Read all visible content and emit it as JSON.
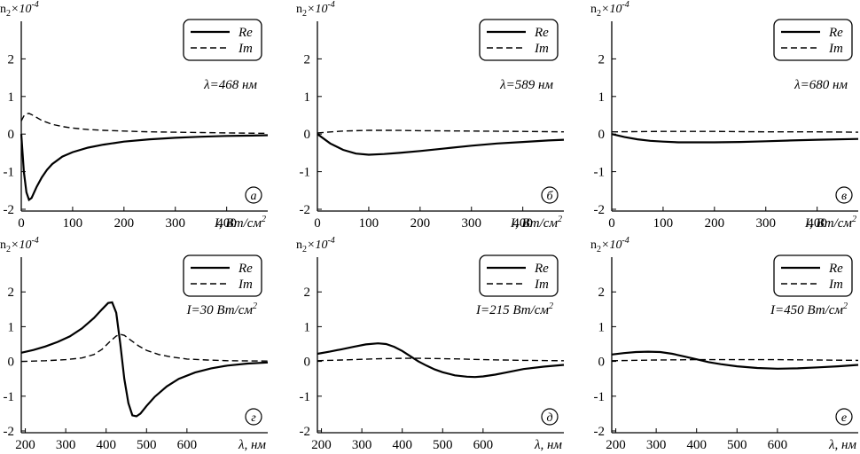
{
  "chart_data": [
    {
      "type": "line",
      "panel_label": "а",
      "annotation": "λ=468 нм",
      "ylabel_base": "n",
      "ylabel_sub": "2",
      "ylabel_mult": "×10",
      "ylabel_exp": "-4",
      "xlabel": "I, Вт/см",
      "xlabel_sup": "2",
      "xlim": [
        0,
        480
      ],
      "ylim": [
        -2,
        3
      ],
      "xticks": [
        0,
        100,
        200,
        300,
        400
      ],
      "yticks": [
        -2,
        -1,
        0,
        1,
        2
      ],
      "legend": {
        "entries": [
          "Re",
          "Im"
        ],
        "position": "top-right"
      },
      "series": [
        {
          "name": "Re",
          "style": "solid",
          "x": [
            0,
            5,
            10,
            15,
            20,
            25,
            30,
            40,
            50,
            60,
            80,
            100,
            130,
            160,
            200,
            250,
            300,
            350,
            400,
            450,
            480
          ],
          "y": [
            0,
            -1.0,
            -1.55,
            -1.75,
            -1.7,
            -1.55,
            -1.4,
            -1.15,
            -0.95,
            -0.8,
            -0.6,
            -0.48,
            -0.36,
            -0.28,
            -0.2,
            -0.14,
            -0.1,
            -0.07,
            -0.05,
            -0.04,
            -0.03
          ]
        },
        {
          "name": "Im",
          "style": "dashed",
          "x": [
            0,
            5,
            10,
            15,
            20,
            30,
            40,
            60,
            80,
            100,
            130,
            160,
            200,
            250,
            300,
            350,
            400,
            480
          ],
          "y": [
            0.35,
            0.48,
            0.54,
            0.55,
            0.52,
            0.44,
            0.36,
            0.26,
            0.2,
            0.16,
            0.12,
            0.1,
            0.08,
            0.06,
            0.05,
            0.04,
            0.03,
            0.02
          ]
        }
      ]
    },
    {
      "type": "line",
      "panel_label": "б",
      "annotation": "λ=589 нм",
      "ylabel_base": "n",
      "ylabel_sub": "2",
      "ylabel_mult": "×10",
      "ylabel_exp": "-4",
      "xlabel": "I, Вт/см",
      "xlabel_sup": "2",
      "xlim": [
        0,
        480
      ],
      "ylim": [
        -2,
        3
      ],
      "xticks": [
        0,
        100,
        200,
        300,
        400
      ],
      "yticks": [
        -2,
        -1,
        0,
        1,
        2
      ],
      "legend": {
        "entries": [
          "Re",
          "Im"
        ],
        "position": "top-right"
      },
      "series": [
        {
          "name": "Re",
          "style": "solid",
          "x": [
            0,
            25,
            50,
            75,
            100,
            130,
            160,
            200,
            250,
            300,
            350,
            400,
            450,
            480
          ],
          "y": [
            0,
            -0.25,
            -0.42,
            -0.52,
            -0.55,
            -0.53,
            -0.5,
            -0.45,
            -0.38,
            -0.31,
            -0.25,
            -0.21,
            -0.17,
            -0.15
          ]
        },
        {
          "name": "Im",
          "style": "dashed",
          "x": [
            0,
            50,
            100,
            150,
            200,
            300,
            400,
            480
          ],
          "y": [
            0.03,
            0.08,
            0.1,
            0.1,
            0.09,
            0.08,
            0.07,
            0.06
          ]
        }
      ]
    },
    {
      "type": "line",
      "panel_label": "в",
      "annotation": "λ=680 нм",
      "ylabel_base": "n",
      "ylabel_sub": "2",
      "ylabel_mult": "×10",
      "ylabel_exp": "-4",
      "xlabel": "I, Вт/см",
      "xlabel_sup": "2",
      "xlim": [
        0,
        480
      ],
      "ylim": [
        -2,
        3
      ],
      "xticks": [
        0,
        100,
        200,
        300,
        400
      ],
      "yticks": [
        -2,
        -1,
        0,
        1,
        2
      ],
      "legend": {
        "entries": [
          "Re",
          "Im"
        ],
        "position": "top-right"
      },
      "series": [
        {
          "name": "Re",
          "style": "solid",
          "x": [
            0,
            25,
            50,
            75,
            100,
            130,
            160,
            200,
            250,
            300,
            350,
            400,
            480
          ],
          "y": [
            0,
            -0.08,
            -0.14,
            -0.18,
            -0.2,
            -0.22,
            -0.22,
            -0.22,
            -0.21,
            -0.19,
            -0.17,
            -0.15,
            -0.13
          ]
        },
        {
          "name": "Im",
          "style": "dashed",
          "x": [
            0,
            100,
            200,
            300,
            400,
            480
          ],
          "y": [
            0.06,
            0.07,
            0.07,
            0.06,
            0.06,
            0.05
          ]
        }
      ]
    },
    {
      "type": "line",
      "panel_label": "г",
      "annotation": "I=30 Вт/см",
      "annotation_sup": "2",
      "ylabel_base": "n",
      "ylabel_sub": "2",
      "ylabel_mult": "×10",
      "ylabel_exp": "-4",
      "xlabel": "λ, нм",
      "xlabel_sup": "",
      "xlim": [
        190,
        800
      ],
      "ylim": [
        -2,
        3
      ],
      "xticks": [
        200,
        300,
        400,
        500,
        600
      ],
      "yticks": [
        -2,
        -1,
        0,
        1,
        2
      ],
      "legend": {
        "entries": [
          "Re",
          "Im"
        ],
        "position": "top-right"
      },
      "series": [
        {
          "name": "Re",
          "style": "solid",
          "x": [
            190,
            220,
            250,
            280,
            310,
            340,
            370,
            390,
            405,
            415,
            425,
            435,
            445,
            455,
            465,
            475,
            485,
            500,
            520,
            550,
            580,
            620,
            660,
            700,
            750,
            800
          ],
          "y": [
            0.25,
            0.33,
            0.43,
            0.56,
            0.72,
            0.95,
            1.25,
            1.5,
            1.68,
            1.7,
            1.4,
            0.5,
            -0.5,
            -1.2,
            -1.55,
            -1.58,
            -1.5,
            -1.28,
            -1.02,
            -0.72,
            -0.5,
            -0.32,
            -0.2,
            -0.12,
            -0.06,
            -0.03
          ]
        },
        {
          "name": "Im",
          "style": "dashed",
          "x": [
            190,
            250,
            300,
            340,
            370,
            390,
            410,
            425,
            435,
            445,
            460,
            480,
            500,
            530,
            560,
            600,
            650,
            700,
            800
          ],
          "y": [
            0.0,
            0.02,
            0.05,
            0.1,
            0.2,
            0.35,
            0.58,
            0.73,
            0.78,
            0.75,
            0.62,
            0.45,
            0.32,
            0.2,
            0.13,
            0.07,
            0.04,
            0.02,
            0.01
          ]
        }
      ]
    },
    {
      "type": "line",
      "panel_label": "д",
      "annotation": "I=215 Вт/см",
      "annotation_sup": "2",
      "ylabel_base": "n",
      "ylabel_sub": "2",
      "ylabel_mult": "×10",
      "ylabel_exp": "-4",
      "xlabel": "λ, нм",
      "xlabel_sup": "",
      "xlim": [
        190,
        800
      ],
      "ylim": [
        -2,
        3
      ],
      "xticks": [
        200,
        300,
        400,
        500,
        600
      ],
      "yticks": [
        -2,
        -1,
        0,
        1,
        2
      ],
      "legend": {
        "entries": [
          "Re",
          "Im"
        ],
        "position": "top-right"
      },
      "series": [
        {
          "name": "Re",
          "style": "solid",
          "x": [
            190,
            220,
            250,
            280,
            310,
            340,
            360,
            380,
            400,
            420,
            440,
            460,
            480,
            500,
            530,
            560,
            580,
            600,
            630,
            660,
            700,
            750,
            800
          ],
          "y": [
            0.22,
            0.28,
            0.35,
            0.42,
            0.49,
            0.52,
            0.5,
            0.42,
            0.3,
            0.15,
            0.0,
            -0.12,
            -0.23,
            -0.31,
            -0.4,
            -0.44,
            -0.45,
            -0.43,
            -0.38,
            -0.31,
            -0.22,
            -0.15,
            -0.1
          ]
        },
        {
          "name": "Im",
          "style": "dashed",
          "x": [
            190,
            250,
            300,
            350,
            400,
            450,
            500,
            550,
            600,
            650,
            700,
            800
          ],
          "y": [
            0.02,
            0.04,
            0.06,
            0.08,
            0.09,
            0.09,
            0.08,
            0.07,
            0.05,
            0.04,
            0.03,
            0.02
          ]
        }
      ]
    },
    {
      "type": "line",
      "panel_label": "е",
      "annotation": "I=450 Вт/см",
      "annotation_sup": "2",
      "ylabel_base": "n",
      "ylabel_sub": "2",
      "ylabel_mult": "×10",
      "ylabel_exp": "-4",
      "xlabel": "λ, нм",
      "xlabel_sup": "",
      "xlim": [
        190,
        800
      ],
      "ylim": [
        -2,
        3
      ],
      "xticks": [
        200,
        300,
        400,
        500,
        600
      ],
      "yticks": [
        -2,
        -1,
        0,
        1,
        2
      ],
      "legend": {
        "entries": [
          "Re",
          "Im"
        ],
        "position": "top-right"
      },
      "series": [
        {
          "name": "Re",
          "style": "solid",
          "x": [
            190,
            220,
            250,
            280,
            310,
            340,
            370,
            400,
            430,
            460,
            500,
            550,
            600,
            650,
            700,
            750,
            800
          ],
          "y": [
            0.2,
            0.24,
            0.27,
            0.28,
            0.27,
            0.22,
            0.14,
            0.06,
            -0.02,
            -0.08,
            -0.14,
            -0.19,
            -0.21,
            -0.2,
            -0.17,
            -0.14,
            -0.1
          ]
        },
        {
          "name": "Im",
          "style": "dashed",
          "x": [
            190,
            300,
            400,
            500,
            600,
            700,
            800
          ],
          "y": [
            0.02,
            0.04,
            0.05,
            0.05,
            0.05,
            0.04,
            0.03
          ]
        }
      ]
    }
  ]
}
